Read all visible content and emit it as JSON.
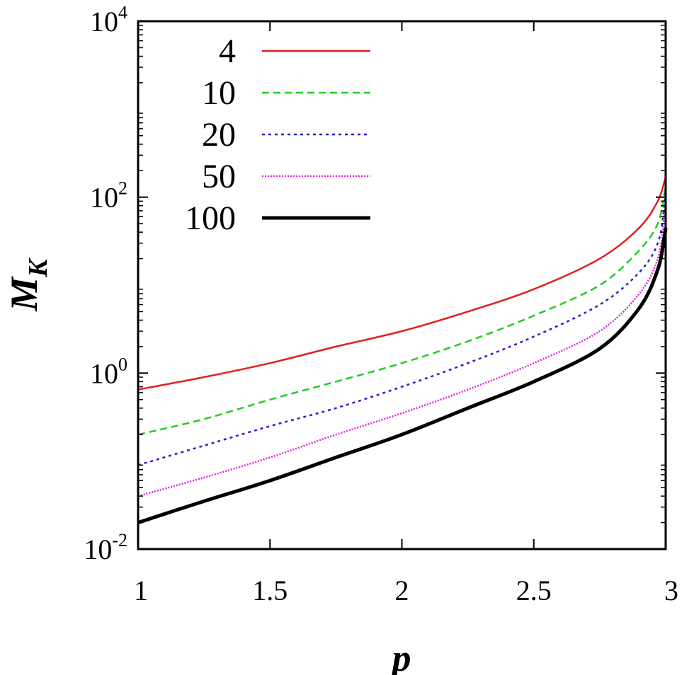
{
  "chart_data": {
    "type": "line",
    "title": "",
    "xlabel": "p",
    "ylabel": "M",
    "ylabel_subscript": "K",
    "xlim": [
      1,
      3
    ],
    "ylim": [
      0.01,
      10000
    ],
    "yscale": "log",
    "grid": false,
    "legend_position": "top-left",
    "x_ticks": [
      "1",
      "1.5",
      "2",
      "2.5",
      "3"
    ],
    "x_tick_values": [
      1,
      1.5,
      2,
      2.5,
      3
    ],
    "y_ticks": [
      {
        "base": "10",
        "exp": "-2",
        "value": 0.01
      },
      {
        "base": "10",
        "exp": "0",
        "value": 1
      },
      {
        "base": "10",
        "exp": "2",
        "value": 100
      },
      {
        "base": "10",
        "exp": "4",
        "value": 10000
      }
    ],
    "x": [
      1.0,
      1.25,
      1.5,
      1.75,
      2.0,
      2.25,
      2.5,
      2.75,
      2.9,
      2.97,
      2.995,
      3.0
    ],
    "series": [
      {
        "name": "4",
        "color": "#e02020",
        "dash": "",
        "values": [
          0.65,
          0.9,
          1.3,
          2.0,
          3.0,
          5.0,
          9.0,
          20,
          45,
          90,
          150,
          170
        ]
      },
      {
        "name": "10",
        "color": "#22cc22",
        "dash": "10,6",
        "values": [
          0.2,
          0.3,
          0.5,
          0.8,
          1.3,
          2.3,
          4.5,
          10,
          25,
          50,
          110,
          150
        ]
      },
      {
        "name": "20",
        "color": "#2222cc",
        "dash": "4,5",
        "values": [
          0.09,
          0.15,
          0.25,
          0.4,
          0.7,
          1.3,
          2.6,
          6,
          14,
          30,
          80,
          140
        ]
      },
      {
        "name": "50",
        "color": "#dd22dd",
        "dash": "2,2",
        "values": [
          0.04,
          0.065,
          0.11,
          0.2,
          0.35,
          0.65,
          1.3,
          3.0,
          8.0,
          20,
          60,
          120
        ]
      },
      {
        "name": "100",
        "color": "#000000",
        "dash": "",
        "width": 5,
        "values": [
          0.02,
          0.035,
          0.06,
          0.11,
          0.2,
          0.4,
          0.8,
          1.9,
          5.5,
          15,
          35,
          45
        ]
      }
    ]
  }
}
